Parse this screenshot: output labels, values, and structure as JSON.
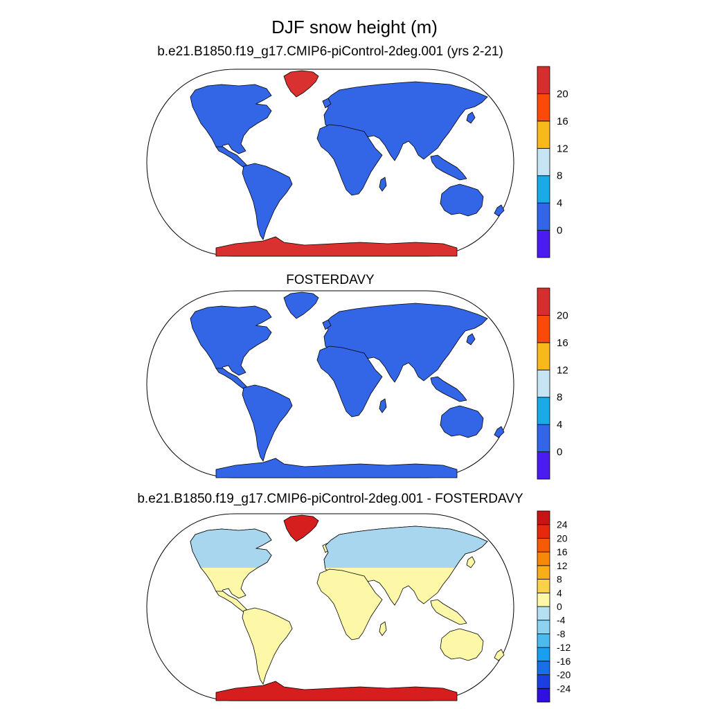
{
  "figure": {
    "title": "DJF snow height (m)"
  },
  "panels": [
    {
      "title": "b.e21.B1850.f19_g17.CMIP6-piControl-2deg.001 (yrs 2-21)",
      "land_color": "#3366e6",
      "greenland_color": "#d93030",
      "antarctica_color": "#d93030",
      "colorbar": {
        "colors": [
          "#4a1cf0",
          "#3366e6",
          "#1aaae6",
          "#c6e4f2",
          "#f8b91c",
          "#fa4a0a",
          "#d42e2e"
        ],
        "labels": [
          "0",
          "4",
          "8",
          "12",
          "16",
          "20"
        ]
      }
    },
    {
      "title": "FOSTERDAVY",
      "land_color": "#3366e6",
      "greenland_color": "#3366e6",
      "antarctica_color": "#3366e6",
      "colorbar": {
        "colors": [
          "#4a1cf0",
          "#3366e6",
          "#1aaae6",
          "#c6e4f2",
          "#f8b91c",
          "#fa4a0a",
          "#d42e2e"
        ],
        "labels": [
          "0",
          "4",
          "8",
          "12",
          "16",
          "20"
        ]
      }
    },
    {
      "title": "b.e21.B1850.f19_g17.CMIP6-piControl-2deg.001 - FOSTERDAVY",
      "land_color": "#fcf8a8",
      "north_band_color": "#a8d6ee",
      "greenland_color": "#d61e1e",
      "antarctica_color": "#d61e1e",
      "colorbar": {
        "colors": [
          "#3010e0",
          "#1a3ee0",
          "#1a6ee8",
          "#1a9ef0",
          "#4dbaee",
          "#8dd2f0",
          "#b5e0f2",
          "#fcf8a8",
          "#f9d24a",
          "#f8ae18",
          "#f7880a",
          "#f55a06",
          "#e6280e",
          "#c81414"
        ],
        "labels": [
          "24",
          "20",
          "16",
          "12",
          "8",
          "4",
          "0",
          "-4",
          "-8",
          "-12",
          "-16",
          "-20",
          "-24"
        ]
      }
    }
  ]
}
